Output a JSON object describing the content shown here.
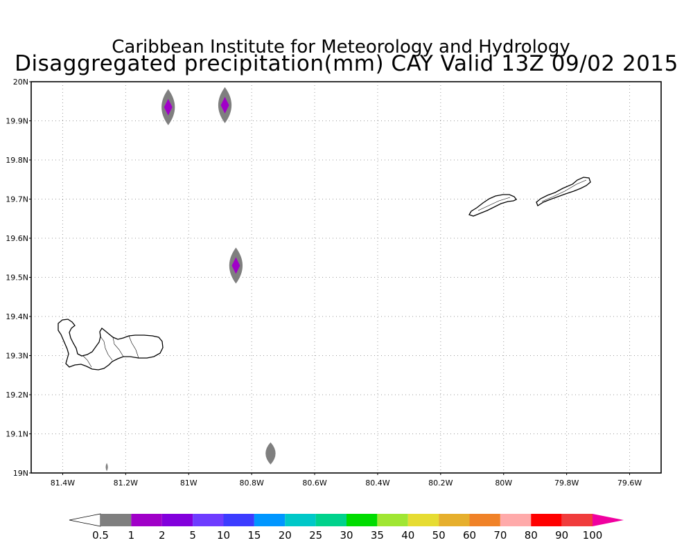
{
  "title_line1": "Caribbean Institute for Meteorology and Hydrology",
  "title_line2": "Disaggregated precipitation(mm) CAY Valid 13Z 09/02 2015",
  "map": {
    "lon_range": [
      -81.5,
      -79.5
    ],
    "lat_range": [
      19.0,
      20.0
    ],
    "lat_labels": [
      {
        "value": 20.0,
        "text": "20N"
      },
      {
        "value": 19.9,
        "text": "19.9N"
      },
      {
        "value": 19.8,
        "text": "19.8N"
      },
      {
        "value": 19.7,
        "text": "19.7N"
      },
      {
        "value": 19.6,
        "text": "19.6N"
      },
      {
        "value": 19.5,
        "text": "19.5N"
      },
      {
        "value": 19.4,
        "text": "19.4N"
      },
      {
        "value": 19.3,
        "text": "19.3N"
      },
      {
        "value": 19.2,
        "text": "19.2N"
      },
      {
        "value": 19.1,
        "text": "19.1N"
      },
      {
        "value": 19.0,
        "text": "19N"
      }
    ],
    "lon_labels": [
      {
        "value": -81.4,
        "text": "81.4W"
      },
      {
        "value": -81.2,
        "text": "81.2W"
      },
      {
        "value": -81.0,
        "text": "81W"
      },
      {
        "value": -80.8,
        "text": "80.8W"
      },
      {
        "value": -80.6,
        "text": "80.6W"
      },
      {
        "value": -80.4,
        "text": "80.4W"
      },
      {
        "value": -80.2,
        "text": "80.2W"
      },
      {
        "value": -80.0,
        "text": "80W"
      },
      {
        "value": -79.8,
        "text": "79.8W"
      },
      {
        "value": -79.6,
        "text": "79.6W"
      }
    ],
    "grid": true,
    "precip_cells": [
      {
        "lon": -81.065,
        "lat": 19.935,
        "max_level": 1
      },
      {
        "lon": -80.885,
        "lat": 19.94,
        "max_level": 1
      },
      {
        "lon": -80.85,
        "lat": 19.53,
        "max_level": 1
      },
      {
        "lon": -80.74,
        "lat": 19.05,
        "max_level": 0.5
      },
      {
        "lon": -81.26,
        "lat": 19.015,
        "max_level": 0.5
      }
    ]
  },
  "colorbar": {
    "colors": [
      "#ffffff",
      "#7f7f7f",
      "#a000c8",
      "#8200dc",
      "#6e3cff",
      "#3c3cff",
      "#0096ff",
      "#00c8c8",
      "#00d28c",
      "#00dc00",
      "#a0e632",
      "#e6dc32",
      "#e6af2d",
      "#f08228",
      "#ffaaaa",
      "#ff0000",
      "#f03c3c",
      "#f0009f"
    ],
    "labels": [
      "0.5",
      "1",
      "2",
      "5",
      "10",
      "15",
      "20",
      "25",
      "30",
      "35",
      "40",
      "50",
      "60",
      "70",
      "80",
      "90",
      "100"
    ]
  }
}
